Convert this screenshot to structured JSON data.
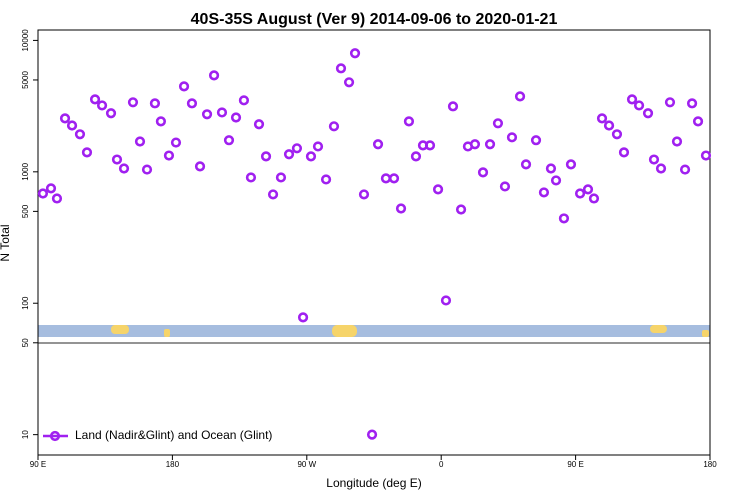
{
  "chart_data": {
    "type": "scatter",
    "title": "40S-35S August (Ver 9)   2014-09-06 to 2020-01-21",
    "xlabel": "Longitude (deg E)",
    "ylabel": "N Total",
    "log_y": true,
    "legend": "bottom-left",
    "xlim": [
      90,
      540
    ],
    "ylim": [
      7,
      12000
    ],
    "xticks": [
      {
        "value": 90,
        "label": "90 E"
      },
      {
        "value": 180,
        "label": "180"
      },
      {
        "value": 270,
        "label": "90 W"
      },
      {
        "value": 360,
        "label": "0"
      },
      {
        "value": 450,
        "label": "90 E"
      },
      {
        "value": 540,
        "label": "180"
      }
    ],
    "yticks": [
      10,
      50,
      100,
      500,
      1000,
      5000,
      10000
    ],
    "x": [
      93.3,
      98.7,
      102.7,
      108.1,
      112.8,
      118.1,
      122.8,
      128.2,
      132.9,
      138.9,
      142.9,
      147.6,
      153.6,
      158.3,
      163.0,
      168.3,
      172.3,
      177.7,
      182.4,
      187.8,
      193.1,
      198.5,
      203.2,
      207.9,
      213.2,
      217.9,
      222.6,
      227.9,
      232.6,
      238.0,
      242.7,
      247.4,
      252.7,
      258.1,
      263.4,
      267.5,
      272.8,
      277.5,
      282.9,
      288.2,
      292.9,
      298.3,
      302.3,
      308.3,
      313.7,
      317.7,
      323.0,
      328.4,
      333.1,
      338.4,
      343.1,
      347.8,
      352.5,
      357.9,
      363.2,
      367.9,
      373.3,
      377.9,
      382.6,
      388.0,
      392.7,
      398.0,
      402.7,
      407.4,
      412.8,
      416.8,
      423.5,
      428.8,
      433.5,
      436.9,
      442.2,
      446.9,
      453.0,
      458.3,
      462.3,
      467.7,
      472.4,
      477.7,
      482.4,
      487.8,
      492.5,
      498.5,
      502.5,
      507.2,
      513.2,
      517.9,
      523.3,
      528.0,
      532.0,
      537.3
    ],
    "series": [
      {
        "name": "Land (Nadir&Glint) and Ocean (Glint)",
        "color": "#a020f0",
        "values": [
          684,
          748,
          627,
          2550,
          2250,
          1930,
          1405,
          3560,
          3200,
          2790,
          1240,
          1060,
          3380,
          1700,
          1040,
          3320,
          2420,
          1330,
          1670,
          4470,
          3320,
          1100,
          2740,
          5420,
          2830,
          1740,
          2590,
          3500,
          906,
          2300,
          1310,
          673,
          906,
          1360,
          1510,
          78,
          1310,
          1560,
          875,
          2220,
          6130,
          4800,
          7980,
          673,
          10,
          1620,
          891,
          891,
          526,
          2420,
          1310,
          1590,
          1590,
          735,
          105,
          3150,
          517,
          1560,
          1620,
          990,
          1620,
          2340,
          774,
          1830,
          3750,
          1140,
          1740,
          697,
          1060,
          860,
          442,
          1140,
          684,
          735,
          627,
          2550,
          2250,
          1930,
          1405,
          3560,
          3200,
          2790,
          1240,
          1060,
          3380,
          1700,
          1040,
          3320,
          2420,
          1330
        ]
      }
    ]
  }
}
